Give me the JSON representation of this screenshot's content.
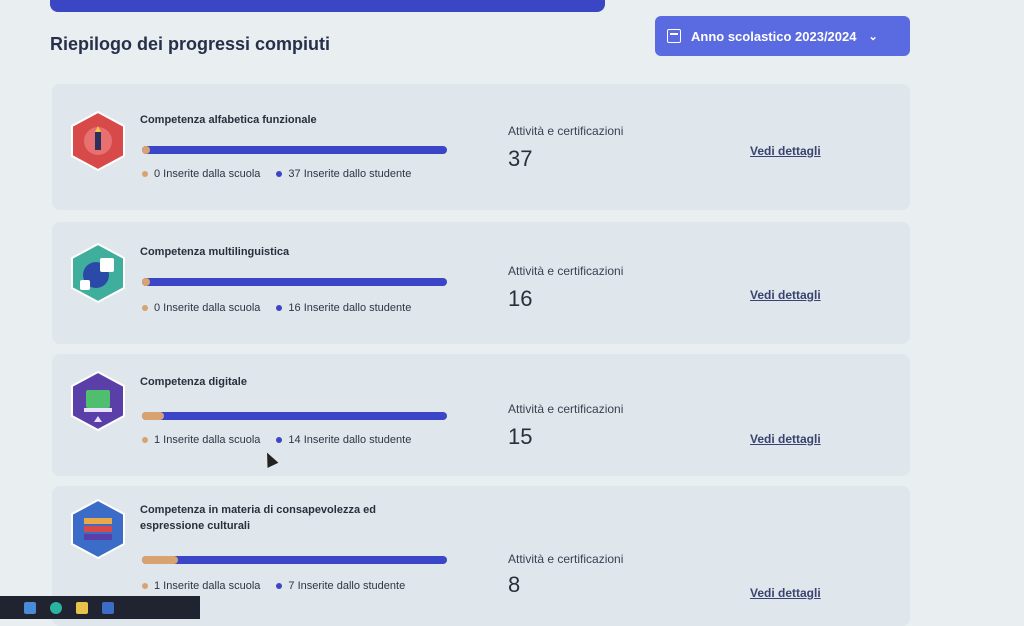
{
  "page": {
    "title": "Riepilogo dei progressi compiuti",
    "year_selector": {
      "label": "Anno scolastico 2023/2024",
      "icon": "calendar-icon",
      "chevron": "chevron-down-icon"
    }
  },
  "colors": {
    "accent": "#3a45c8",
    "school": "#d8a271",
    "button": "#5a6ae0"
  },
  "competencies": [
    {
      "title": "Competenza alfabetica funzionale",
      "school_label": "0 Inserite dalla scuola",
      "student_label": "37 Inserite dallo studente",
      "school_count": 0,
      "student_count": 37,
      "stat_label": "Attività e certificazioni",
      "stat_value": "37",
      "details": "Vedi dettagli",
      "badge_color": "#d84a4a"
    },
    {
      "title": "Competenza multilinguistica",
      "school_label": "0 Inserite dalla scuola",
      "student_label": "16 Inserite dallo studente",
      "school_count": 0,
      "student_count": 16,
      "stat_label": "Attività e certificazioni",
      "stat_value": "16",
      "details": "Vedi dettagli",
      "badge_color": "#3fae9c"
    },
    {
      "title": "Competenza digitale",
      "school_label": "1 Inserite dalla scuola",
      "student_label": "14 Inserite dallo studente",
      "school_count": 1,
      "student_count": 14,
      "stat_label": "Attività e certificazioni",
      "stat_value": "15",
      "details": "Vedi dettagli",
      "badge_color": "#5b3fa8"
    },
    {
      "title": "Competenza in materia di consapevolezza ed espressione culturali",
      "school_label": "1 Inserite dalla scuola",
      "student_label": "7 Inserite dallo studente",
      "school_count": 1,
      "student_count": 7,
      "stat_label": "Attività e certificazioni",
      "stat_value": "8",
      "details": "Vedi dettagli",
      "badge_color": "#3a6cc8"
    }
  ]
}
